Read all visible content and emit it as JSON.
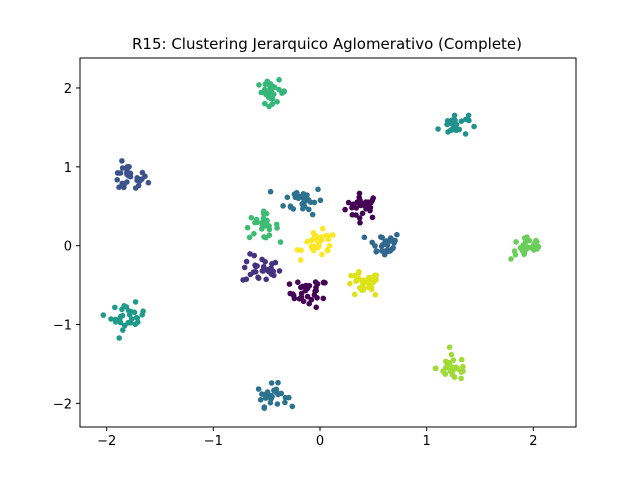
{
  "chart_data": {
    "type": "scatter",
    "title": "R15: Clustering Jerarquico Aglomerativo (Complete)",
    "xlabel": "",
    "ylabel": "",
    "xlim": [
      -2.25,
      2.4
    ],
    "ylim": [
      -2.3,
      2.38
    ],
    "xticks": [
      -2,
      -1,
      0,
      1,
      2
    ],
    "xtick_labels": [
      "−2",
      "−1",
      "0",
      "1",
      "2"
    ],
    "yticks": [
      -2,
      -1,
      0,
      1,
      2
    ],
    "ytick_labels": [
      "−2",
      "−1",
      "0",
      "1",
      "2"
    ],
    "grid": false,
    "legend": "none",
    "colormap": "viridis",
    "clusters": [
      {
        "cx": 0.4,
        "cy": 0.5,
        "n": 30,
        "color": "#440154",
        "spread": 0.08
      },
      {
        "cx": -0.1,
        "cy": -0.6,
        "n": 32,
        "color": "#440154",
        "spread": 0.09
      },
      {
        "cx": -1.8,
        "cy": 0.85,
        "n": 30,
        "color": "#3b528b",
        "spread": 0.09
      },
      {
        "cx": -0.55,
        "cy": -0.3,
        "n": 30,
        "color": "#46327e",
        "spread": 0.09
      },
      {
        "cx": 0.6,
        "cy": 0.02,
        "n": 30,
        "color": "#31688e",
        "spread": 0.08
      },
      {
        "cx": -0.15,
        "cy": 0.58,
        "n": 30,
        "color": "#2c728e",
        "spread": 0.09
      },
      {
        "cx": -0.45,
        "cy": -1.9,
        "n": 28,
        "color": "#2c728e",
        "spread": 0.07
      },
      {
        "cx": 1.25,
        "cy": 1.53,
        "n": 28,
        "color": "#21918c",
        "spread": 0.07
      },
      {
        "cx": -1.8,
        "cy": -0.9,
        "n": 30,
        "color": "#1f9a8a",
        "spread": 0.08
      },
      {
        "cx": -0.45,
        "cy": 1.95,
        "n": 30,
        "color": "#35b779",
        "spread": 0.07
      },
      {
        "cx": -0.55,
        "cy": 0.25,
        "n": 28,
        "color": "#3fbc73",
        "spread": 0.08
      },
      {
        "cx": 1.95,
        "cy": -0.02,
        "n": 28,
        "color": "#6ccd5a",
        "spread": 0.08
      },
      {
        "cx": 1.25,
        "cy": -1.55,
        "n": 30,
        "color": "#a0da39",
        "spread": 0.08
      },
      {
        "cx": 0.4,
        "cy": -0.5,
        "n": 32,
        "color": "#dde318",
        "spread": 0.08
      },
      {
        "cx": 0.0,
        "cy": 0.02,
        "n": 30,
        "color": "#fde725",
        "spread": 0.08
      }
    ]
  }
}
